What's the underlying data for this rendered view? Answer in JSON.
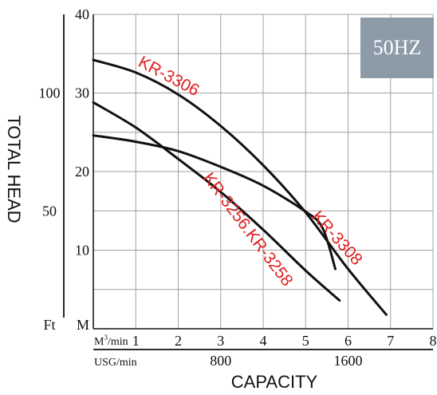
{
  "badge": {
    "text": "50HZ",
    "bg_color": "#8d9ba9",
    "text_color": "#ffffff"
  },
  "ylabel": "TOTAL HEAD",
  "xlabel": "CAPACITY",
  "corner_labels": {
    "ft": "Ft",
    "m": "M"
  },
  "chart_data": {
    "type": "line",
    "title": "",
    "grid": true,
    "x_unit_label": "M3/min",
    "x_unit_superscript": "3",
    "x_unit_base": "M",
    "x_unit_suffix": "/min",
    "x_secondary_unit": "USG/min",
    "xlim": [
      0,
      8
    ],
    "ylim": [
      0,
      40
    ],
    "x_ticks": [
      "1",
      "2",
      "3",
      "4",
      "5",
      "6",
      "7",
      "8"
    ],
    "x_secondary_ticks": [
      {
        "x": 3,
        "label": "800"
      },
      {
        "x": 6,
        "label": "1600"
      }
    ],
    "y_ticks_m": [
      "10",
      "20",
      "30",
      "40"
    ],
    "y_ticks_ft": [
      {
        "y": 15,
        "label": "50"
      },
      {
        "y": 30,
        "label": "100"
      }
    ],
    "curve_color": "#111111",
    "label_color": "#e02020",
    "series": [
      {
        "name": "KR-3306",
        "points": [
          [
            0,
            34.2
          ],
          [
            1,
            32.6
          ],
          [
            2,
            29.8
          ],
          [
            3,
            25.8
          ],
          [
            4,
            20.8
          ],
          [
            5,
            14.8
          ],
          [
            6,
            7.6
          ],
          [
            6.9,
            1.8
          ]
        ]
      },
      {
        "name": "KR-3308",
        "points": [
          [
            0,
            24.6
          ],
          [
            1,
            23.8
          ],
          [
            2,
            22.6
          ],
          [
            3,
            20.6
          ],
          [
            4,
            18.2
          ],
          [
            5,
            14.9
          ],
          [
            5.4,
            12.8
          ],
          [
            5.7,
            7.6
          ]
        ]
      },
      {
        "name": "KR-3256.KR-3258",
        "points": [
          [
            0,
            28.8
          ],
          [
            1,
            25.6
          ],
          [
            2,
            21.6
          ],
          [
            3,
            17.4
          ],
          [
            4,
            12.6
          ],
          [
            5,
            7.4
          ],
          [
            5.8,
            3.6
          ]
        ]
      }
    ]
  }
}
